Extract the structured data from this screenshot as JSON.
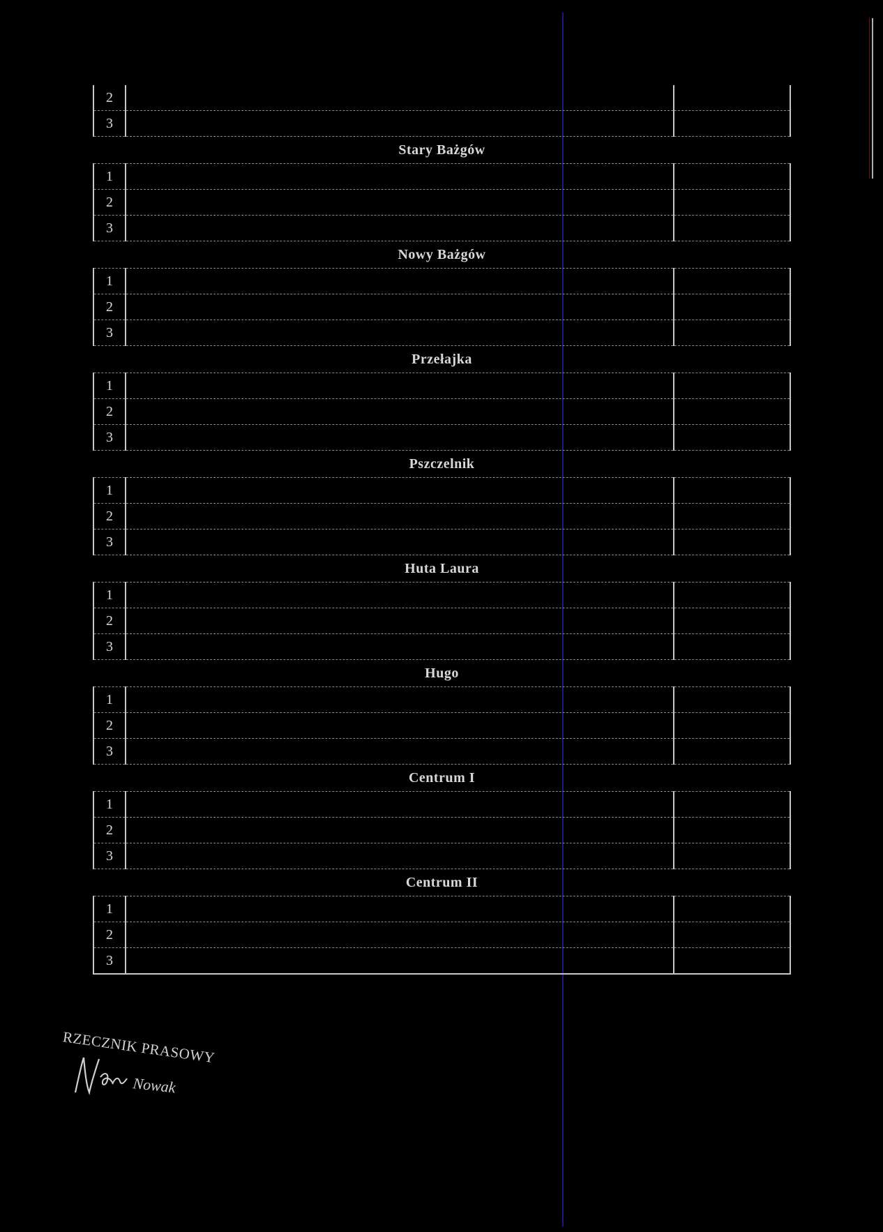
{
  "sections": [
    {
      "title": "",
      "rows": [
        "2",
        "3"
      ]
    },
    {
      "title": "Stary Bażgów",
      "rows": [
        "1",
        "2",
        "3"
      ]
    },
    {
      "title": "Nowy Bażgów",
      "rows": [
        "1",
        "2",
        "3"
      ]
    },
    {
      "title": "Przełajka",
      "rows": [
        "1",
        "2",
        "3"
      ]
    },
    {
      "title": "Pszczelnik",
      "rows": [
        "1",
        "2",
        "3"
      ]
    },
    {
      "title": "Huta Laura",
      "rows": [
        "1",
        "2",
        "3"
      ]
    },
    {
      "title": "Hugo",
      "rows": [
        "1",
        "2",
        "3"
      ]
    },
    {
      "title": "Centrum I",
      "rows": [
        "1",
        "2",
        "3"
      ]
    },
    {
      "title": "Centrum II",
      "rows": [
        "1",
        "2",
        "3"
      ]
    }
  ],
  "signature": {
    "title": "RZECZNIK PRASOWY",
    "name": "Nowak"
  }
}
